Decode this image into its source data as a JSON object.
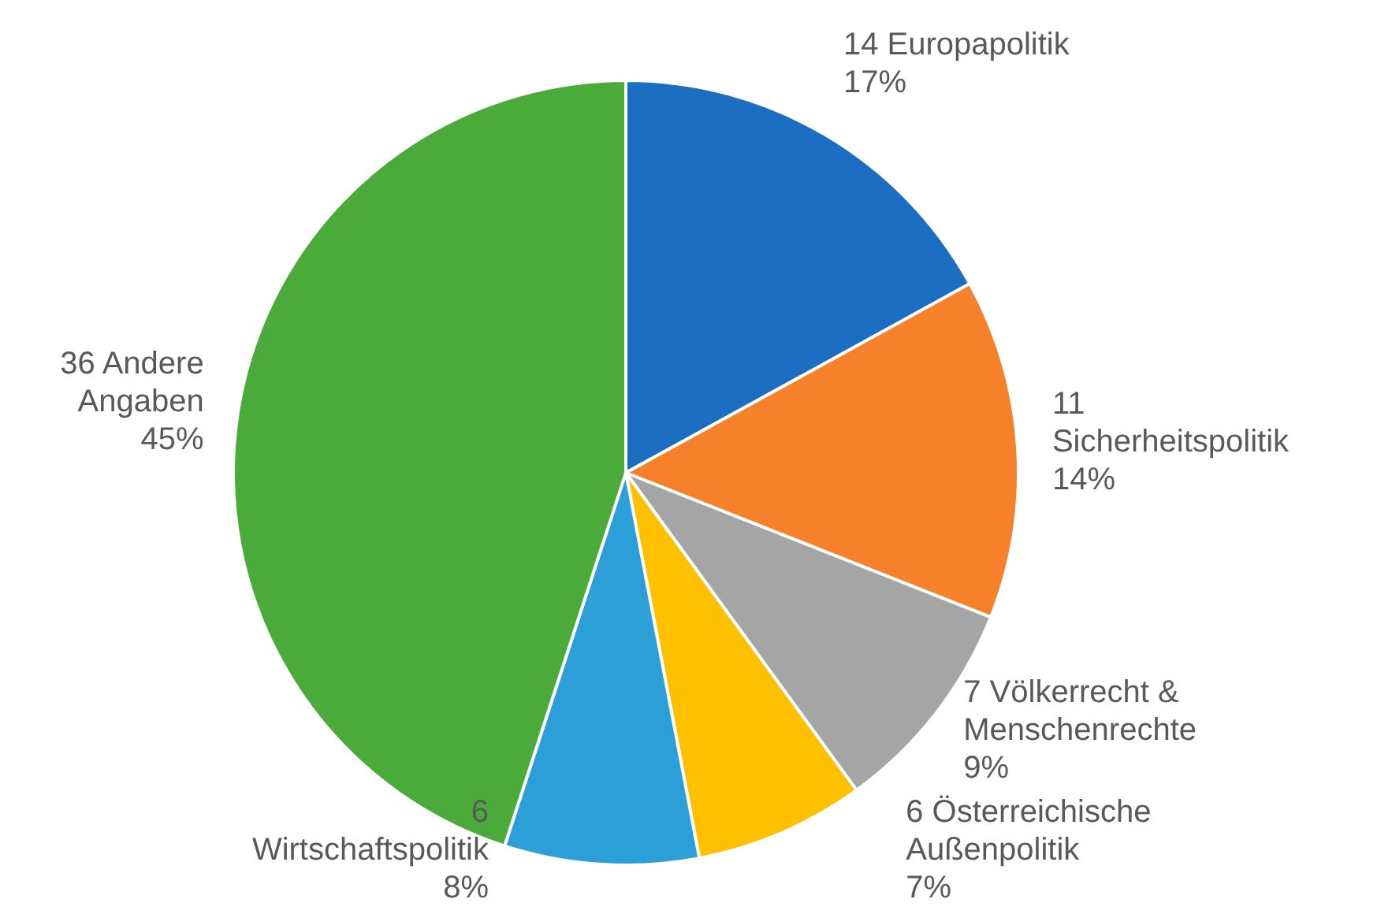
{
  "chart_data": {
    "type": "pie",
    "categories": [
      "14 Europapolitik",
      "11 Sicherheitspolitik",
      "7 Völkerrecht & Menschenrechte",
      "6 Österreichische Außenpolitik",
      "6 Wirtschaftspolitik",
      "36 Andere Angaben"
    ],
    "values": [
      17,
      14,
      9,
      7,
      8,
      45
    ],
    "colors": [
      "#1b6ec2",
      "#f7802a",
      "#a5a5a5",
      "#ffc000",
      "#2c9fd8",
      "#4aab3b"
    ],
    "value_labels": [
      "17%",
      "14%",
      "9%",
      "7%",
      "8%",
      "45%"
    ],
    "legend": false
  }
}
